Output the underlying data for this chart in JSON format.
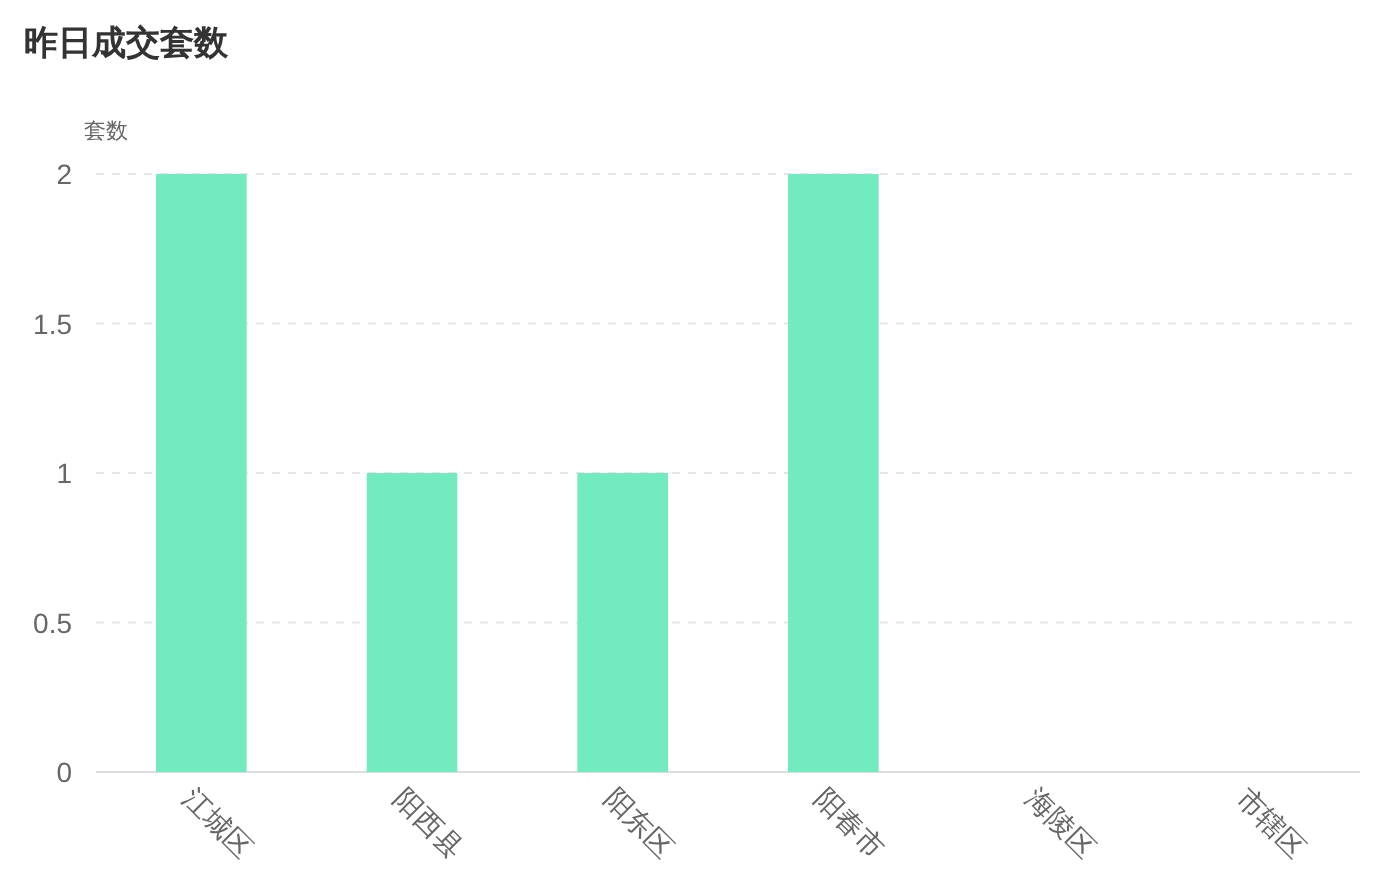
{
  "chart_data": {
    "type": "bar",
    "title": "昨日成交套数",
    "ylabel": "套数",
    "categories": [
      "江城区",
      "阳西县",
      "阳东区",
      "阳春市",
      "海陵区",
      "市辖区"
    ],
    "values": [
      2,
      1,
      1,
      2,
      0,
      0
    ],
    "color": "#72ecbf",
    "ylim": [
      0,
      2
    ],
    "yticks": [
      0,
      0.5,
      1,
      1.5,
      2
    ],
    "grid": "y"
  }
}
